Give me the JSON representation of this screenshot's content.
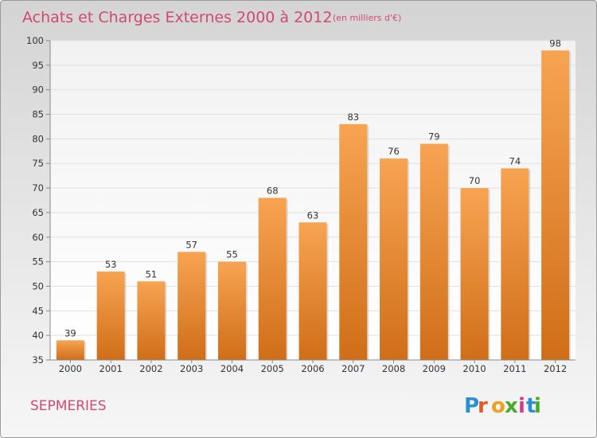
{
  "title": "Achats et Charges Externes 2000 à 2012",
  "subtitle": "(en milliers d'€)",
  "commune": "SEPMERIES",
  "logo": "Proxiti",
  "colors": {
    "title": "#d04a70",
    "bar_top": "#f7a452",
    "bar_bottom": "#d06e18"
  },
  "chart_data": {
    "type": "bar",
    "categories": [
      "2000",
      "2001",
      "2002",
      "2003",
      "2004",
      "2005",
      "2006",
      "2007",
      "2008",
      "2009",
      "2010",
      "2011",
      "2012"
    ],
    "values": [
      39,
      53,
      51,
      57,
      55,
      68,
      63,
      83,
      76,
      79,
      70,
      74,
      98
    ],
    "ylim": [
      35,
      100
    ],
    "yticks": [
      35,
      40,
      45,
      50,
      55,
      60,
      65,
      70,
      75,
      80,
      85,
      90,
      95,
      100
    ],
    "title": "Achats et Charges Externes 2000 à 2012",
    "subtitle": "(en milliers d'€)",
    "grid": true
  }
}
